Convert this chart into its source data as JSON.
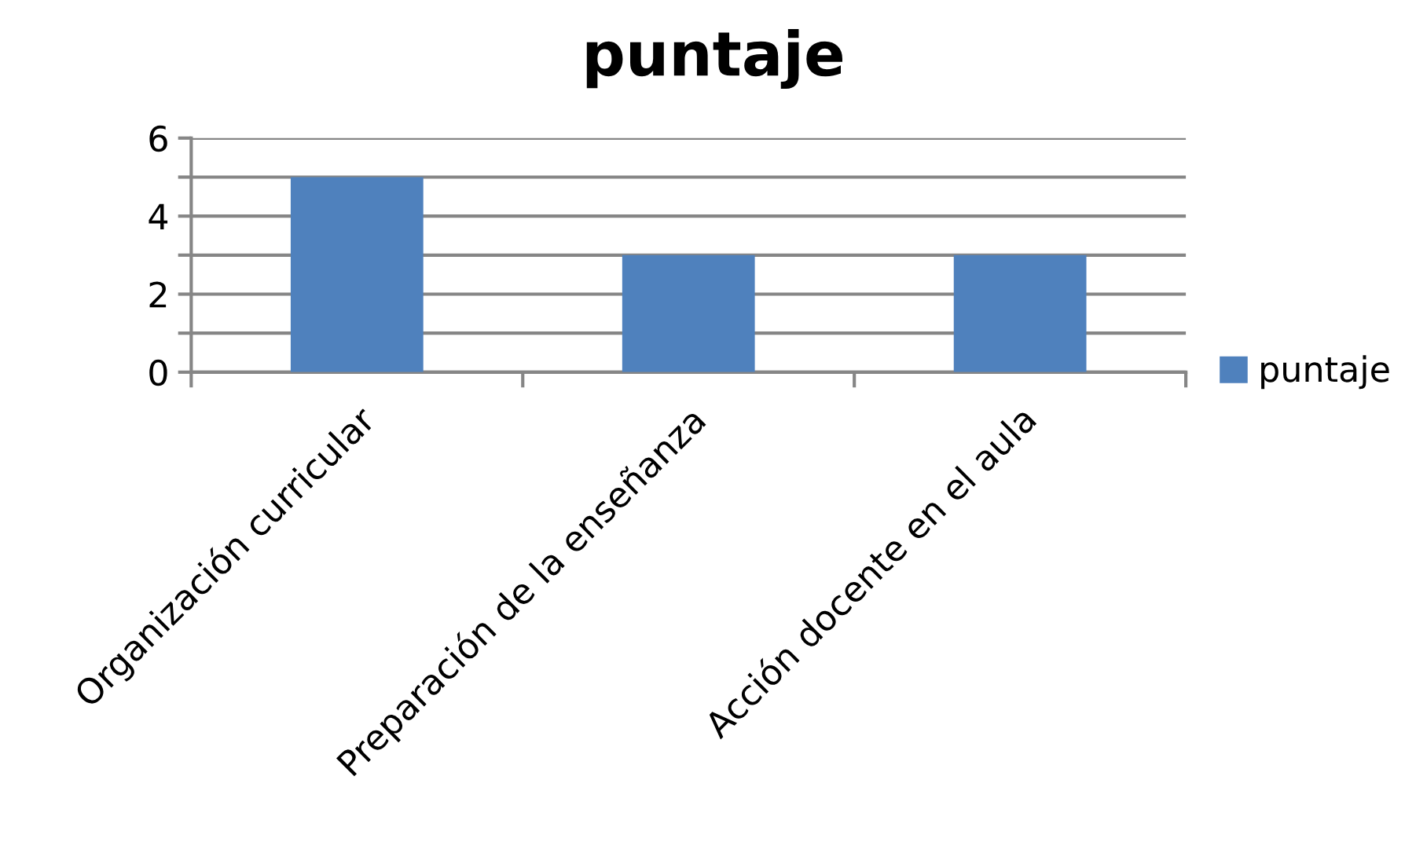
{
  "chart_data": {
    "type": "bar",
    "title": "puntaje",
    "categories": [
      "Organización curricular",
      "Preparación de la enseñanza",
      "Acción docente en el aula"
    ],
    "series": [
      {
        "name": "puntaje",
        "color": "#4f81bd",
        "values": [
          5,
          3,
          3
        ]
      }
    ],
    "ylim": [
      0,
      6
    ],
    "yticks": [
      0,
      {
        "value": 1,
        "label": null
      },
      2,
      {
        "value": 3,
        "label": null
      },
      4,
      {
        "value": 5,
        "label": null
      },
      6
    ],
    "grid": "y",
    "legend": "right"
  }
}
